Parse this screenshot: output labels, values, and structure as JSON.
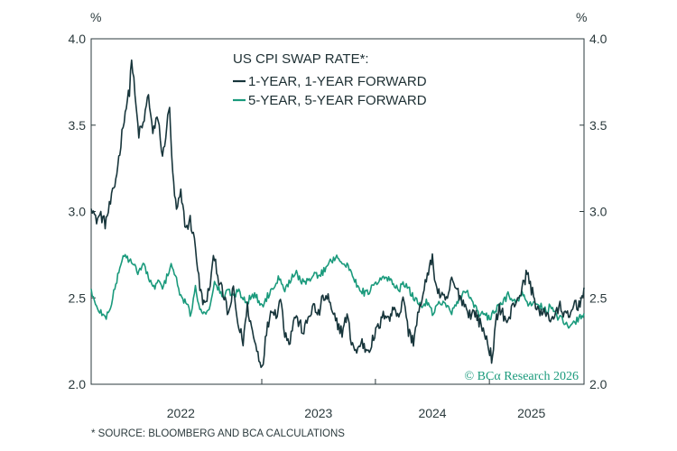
{
  "chart_data": {
    "type": "line",
    "title": "US CPI SWAP RATE*:",
    "y_unit_left": "%",
    "y_unit_right": "%",
    "ylim": [
      2.0,
      4.0
    ],
    "y_ticks": [
      "4.0",
      "3.5",
      "3.0",
      "2.5",
      "2.0"
    ],
    "x_range": [
      "2021-07-01",
      "2025-10-31"
    ],
    "x_tick_dates": [
      "2022-12-31",
      "2023-12-31",
      "2024-12-31"
    ],
    "x_year_labels": [
      {
        "label": "2022",
        "center": "2022-04-15"
      },
      {
        "label": "2023",
        "center": "2023-07-01"
      },
      {
        "label": "2024",
        "center": "2024-07-01"
      },
      {
        "label": "2025",
        "center": "2025-05-15"
      }
    ],
    "legend_position": "top-center",
    "source_note": "* SOURCE: BLOOMBERG AND BCA CALCULATIONS",
    "watermark": "© BCα Research 2026",
    "series": [
      {
        "name": "1-YEAR, 1-YEAR FORWARD",
        "color": "#17353b",
        "points": [
          [
            "2021-07-01",
            3.05
          ],
          [
            "2021-07-15",
            2.95
          ],
          [
            "2021-08-01",
            2.98
          ],
          [
            "2021-08-15",
            2.93
          ],
          [
            "2021-09-01",
            3.05
          ],
          [
            "2021-09-15",
            3.15
          ],
          [
            "2021-10-01",
            3.35
          ],
          [
            "2021-10-15",
            3.55
          ],
          [
            "2021-11-01",
            3.7
          ],
          [
            "2021-11-08",
            3.89
          ],
          [
            "2021-11-22",
            3.6
          ],
          [
            "2021-12-01",
            3.45
          ],
          [
            "2021-12-15",
            3.5
          ],
          [
            "2022-01-01",
            3.68
          ],
          [
            "2022-01-15",
            3.45
          ],
          [
            "2022-02-01",
            3.55
          ],
          [
            "2022-02-15",
            3.3
          ],
          [
            "2022-03-01",
            3.5
          ],
          [
            "2022-03-10",
            3.6
          ],
          [
            "2022-03-20",
            3.2
          ],
          [
            "2022-04-01",
            3.0
          ],
          [
            "2022-04-15",
            3.1
          ],
          [
            "2022-05-01",
            2.9
          ],
          [
            "2022-05-15",
            2.95
          ],
          [
            "2022-06-01",
            2.8
          ],
          [
            "2022-06-15",
            2.55
          ],
          [
            "2022-07-01",
            2.45
          ],
          [
            "2022-07-15",
            2.55
          ],
          [
            "2022-08-01",
            2.75
          ],
          [
            "2022-08-15",
            2.6
          ],
          [
            "2022-09-01",
            2.5
          ],
          [
            "2022-09-15",
            2.4
          ],
          [
            "2022-10-01",
            2.55
          ],
          [
            "2022-10-15",
            2.35
          ],
          [
            "2022-11-01",
            2.25
          ],
          [
            "2022-11-15",
            2.45
          ],
          [
            "2022-12-01",
            2.3
          ],
          [
            "2022-12-15",
            2.2
          ],
          [
            "2023-01-01",
            2.1
          ],
          [
            "2023-01-15",
            2.3
          ],
          [
            "2023-02-01",
            2.45
          ],
          [
            "2023-02-15",
            2.4
          ],
          [
            "2023-03-01",
            2.5
          ],
          [
            "2023-03-15",
            2.3
          ],
          [
            "2023-04-01",
            2.25
          ],
          [
            "2023-04-15",
            2.4
          ],
          [
            "2023-05-01",
            2.35
          ],
          [
            "2023-05-15",
            2.3
          ],
          [
            "2023-06-01",
            2.4
          ],
          [
            "2023-06-15",
            2.45
          ],
          [
            "2023-07-01",
            2.4
          ],
          [
            "2023-07-15",
            2.5
          ],
          [
            "2023-08-01",
            2.5
          ],
          [
            "2023-08-15",
            2.4
          ],
          [
            "2023-09-01",
            2.35
          ],
          [
            "2023-09-15",
            2.3
          ],
          [
            "2023-10-01",
            2.4
          ],
          [
            "2023-10-15",
            2.25
          ],
          [
            "2023-11-01",
            2.18
          ],
          [
            "2023-11-15",
            2.25
          ],
          [
            "2023-12-01",
            2.2
          ],
          [
            "2023-12-15",
            2.22
          ],
          [
            "2024-01-01",
            2.3
          ],
          [
            "2024-01-15",
            2.35
          ],
          [
            "2024-02-01",
            2.42
          ],
          [
            "2024-02-15",
            2.38
          ],
          [
            "2024-03-01",
            2.45
          ],
          [
            "2024-03-15",
            2.4
          ],
          [
            "2024-04-01",
            2.5
          ],
          [
            "2024-04-15",
            2.3
          ],
          [
            "2024-05-01",
            2.25
          ],
          [
            "2024-05-15",
            2.4
          ],
          [
            "2024-06-01",
            2.5
          ],
          [
            "2024-06-15",
            2.65
          ],
          [
            "2024-07-01",
            2.72
          ],
          [
            "2024-07-15",
            2.55
          ],
          [
            "2024-08-01",
            2.5
          ],
          [
            "2024-08-15",
            2.48
          ],
          [
            "2024-09-01",
            2.6
          ],
          [
            "2024-09-15",
            2.55
          ],
          [
            "2024-10-01",
            2.5
          ],
          [
            "2024-10-15",
            2.45
          ],
          [
            "2024-11-01",
            2.4
          ],
          [
            "2024-11-15",
            2.42
          ],
          [
            "2024-12-01",
            2.35
          ],
          [
            "2024-12-15",
            2.3
          ],
          [
            "2025-01-01",
            2.2
          ],
          [
            "2025-01-10",
            2.13
          ],
          [
            "2025-01-20",
            2.35
          ],
          [
            "2025-02-01",
            2.45
          ],
          [
            "2025-02-15",
            2.4
          ],
          [
            "2025-03-01",
            2.35
          ],
          [
            "2025-03-15",
            2.45
          ],
          [
            "2025-04-01",
            2.5
          ],
          [
            "2025-04-15",
            2.55
          ],
          [
            "2025-05-01",
            2.65
          ],
          [
            "2025-05-15",
            2.55
          ],
          [
            "2025-06-01",
            2.45
          ],
          [
            "2025-06-15",
            2.4
          ],
          [
            "2025-07-01",
            2.42
          ],
          [
            "2025-07-15",
            2.38
          ],
          [
            "2025-08-01",
            2.4
          ],
          [
            "2025-08-15",
            2.45
          ],
          [
            "2025-09-01",
            2.4
          ],
          [
            "2025-09-15",
            2.38
          ],
          [
            "2025-10-01",
            2.48
          ],
          [
            "2025-10-15",
            2.45
          ],
          [
            "2025-10-31",
            2.56
          ]
        ]
      },
      {
        "name": "5-YEAR, 5-YEAR FORWARD",
        "color": "#1a9a7c",
        "points": [
          [
            "2021-07-01",
            2.55
          ],
          [
            "2021-07-15",
            2.45
          ],
          [
            "2021-08-01",
            2.42
          ],
          [
            "2021-08-15",
            2.38
          ],
          [
            "2021-09-01",
            2.45
          ],
          [
            "2021-09-15",
            2.55
          ],
          [
            "2021-10-01",
            2.68
          ],
          [
            "2021-10-15",
            2.75
          ],
          [
            "2021-11-01",
            2.72
          ],
          [
            "2021-11-15",
            2.68
          ],
          [
            "2021-12-01",
            2.65
          ],
          [
            "2021-12-15",
            2.7
          ],
          [
            "2022-01-01",
            2.62
          ],
          [
            "2022-01-15",
            2.55
          ],
          [
            "2022-02-01",
            2.6
          ],
          [
            "2022-02-15",
            2.55
          ],
          [
            "2022-03-01",
            2.62
          ],
          [
            "2022-03-15",
            2.7
          ],
          [
            "2022-04-01",
            2.6
          ],
          [
            "2022-04-15",
            2.5
          ],
          [
            "2022-05-01",
            2.48
          ],
          [
            "2022-05-15",
            2.4
          ],
          [
            "2022-06-01",
            2.55
          ],
          [
            "2022-06-15",
            2.45
          ],
          [
            "2022-07-01",
            2.4
          ],
          [
            "2022-07-15",
            2.45
          ],
          [
            "2022-08-01",
            2.58
          ],
          [
            "2022-08-15",
            2.55
          ],
          [
            "2022-09-01",
            2.5
          ],
          [
            "2022-09-15",
            2.55
          ],
          [
            "2022-10-01",
            2.5
          ],
          [
            "2022-10-15",
            2.55
          ],
          [
            "2022-11-01",
            2.5
          ],
          [
            "2022-11-15",
            2.48
          ],
          [
            "2022-12-01",
            2.52
          ],
          [
            "2022-12-15",
            2.5
          ],
          [
            "2023-01-01",
            2.45
          ],
          [
            "2023-01-15",
            2.5
          ],
          [
            "2023-02-01",
            2.55
          ],
          [
            "2023-02-15",
            2.6
          ],
          [
            "2023-03-01",
            2.62
          ],
          [
            "2023-03-15",
            2.55
          ],
          [
            "2023-04-01",
            2.6
          ],
          [
            "2023-04-15",
            2.65
          ],
          [
            "2023-05-01",
            2.62
          ],
          [
            "2023-05-15",
            2.58
          ],
          [
            "2023-06-01",
            2.6
          ],
          [
            "2023-06-15",
            2.65
          ],
          [
            "2023-07-01",
            2.62
          ],
          [
            "2023-07-15",
            2.65
          ],
          [
            "2023-08-01",
            2.7
          ],
          [
            "2023-08-15",
            2.72
          ],
          [
            "2023-09-01",
            2.75
          ],
          [
            "2023-09-15",
            2.7
          ],
          [
            "2023-10-01",
            2.68
          ],
          [
            "2023-10-15",
            2.65
          ],
          [
            "2023-11-01",
            2.58
          ],
          [
            "2023-11-15",
            2.55
          ],
          [
            "2023-12-01",
            2.52
          ],
          [
            "2023-12-15",
            2.55
          ],
          [
            "2024-01-01",
            2.58
          ],
          [
            "2024-01-15",
            2.6
          ],
          [
            "2024-02-01",
            2.62
          ],
          [
            "2024-02-15",
            2.6
          ],
          [
            "2024-03-01",
            2.58
          ],
          [
            "2024-03-15",
            2.55
          ],
          [
            "2024-04-01",
            2.58
          ],
          [
            "2024-04-15",
            2.55
          ],
          [
            "2024-05-01",
            2.5
          ],
          [
            "2024-05-15",
            2.48
          ],
          [
            "2024-06-01",
            2.45
          ],
          [
            "2024-06-15",
            2.48
          ],
          [
            "2024-07-01",
            2.42
          ],
          [
            "2024-07-15",
            2.45
          ],
          [
            "2024-08-01",
            2.48
          ],
          [
            "2024-08-15",
            2.45
          ],
          [
            "2024-09-01",
            2.42
          ],
          [
            "2024-09-15",
            2.45
          ],
          [
            "2024-10-01",
            2.5
          ],
          [
            "2024-10-15",
            2.55
          ],
          [
            "2024-11-01",
            2.5
          ],
          [
            "2024-11-15",
            2.45
          ],
          [
            "2024-12-01",
            2.4
          ],
          [
            "2024-12-15",
            2.4
          ],
          [
            "2025-01-01",
            2.38
          ],
          [
            "2025-01-15",
            2.42
          ],
          [
            "2025-02-01",
            2.45
          ],
          [
            "2025-02-15",
            2.48
          ],
          [
            "2025-03-01",
            2.52
          ],
          [
            "2025-03-15",
            2.5
          ],
          [
            "2025-04-01",
            2.48
          ],
          [
            "2025-04-15",
            2.52
          ],
          [
            "2025-05-01",
            2.48
          ],
          [
            "2025-05-15",
            2.45
          ],
          [
            "2025-06-01",
            2.48
          ],
          [
            "2025-06-15",
            2.45
          ],
          [
            "2025-07-01",
            2.42
          ],
          [
            "2025-07-15",
            2.45
          ],
          [
            "2025-08-01",
            2.4
          ],
          [
            "2025-08-15",
            2.38
          ],
          [
            "2025-09-01",
            2.35
          ],
          [
            "2025-09-15",
            2.32
          ],
          [
            "2025-10-01",
            2.36
          ],
          [
            "2025-10-15",
            2.38
          ],
          [
            "2025-10-31",
            2.41
          ]
        ]
      }
    ]
  }
}
